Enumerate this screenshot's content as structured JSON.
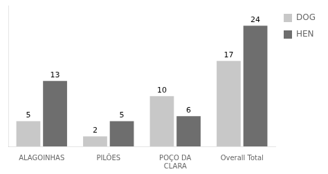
{
  "chart_data": {
    "type": "bar",
    "categories": [
      "ALAGOINHAS",
      "PILÕES",
      "POÇO DA\nCLARA",
      "Overall Total"
    ],
    "series": [
      {
        "name": "DOG",
        "color": "#c8c8c8",
        "values": [
          5,
          2,
          10,
          17
        ]
      },
      {
        "name": "HEN",
        "color": "#6e6e6e",
        "values": [
          13,
          5,
          6,
          24
        ]
      }
    ],
    "ylim": [
      0,
      28
    ],
    "grid": false,
    "legend": "right",
    "data_labels": true,
    "tick_labels": "x"
  }
}
